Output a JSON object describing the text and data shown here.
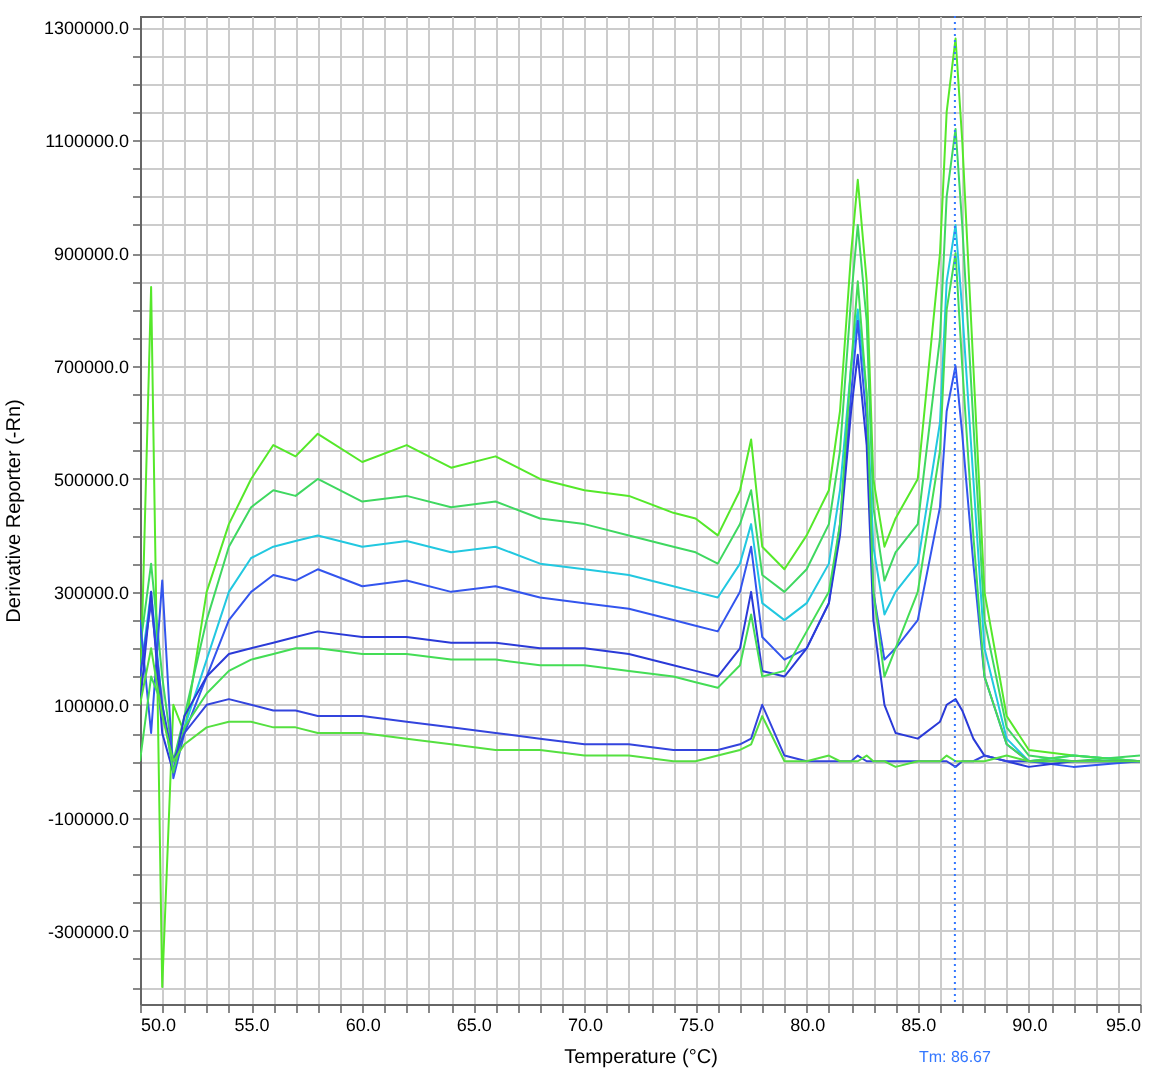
{
  "chart_data": {
    "type": "line",
    "xlabel": "Temperature (°C)",
    "ylabel": "Derivative Reporter (-Rn)",
    "xlim": [
      50,
      95
    ],
    "ylim": [
      -430000,
      1320000
    ],
    "grid": true,
    "xticks": [
      {
        "value": 50,
        "label": "50.0"
      },
      {
        "value": 51,
        "label": null
      },
      {
        "value": 52,
        "label": null
      },
      {
        "value": 53,
        "label": null
      },
      {
        "value": 54,
        "label": null
      },
      {
        "value": 55,
        "label": "55.0"
      },
      {
        "value": 56,
        "label": null
      },
      {
        "value": 57,
        "label": null
      },
      {
        "value": 58,
        "label": null
      },
      {
        "value": 59,
        "label": null
      },
      {
        "value": 60,
        "label": "60.0"
      },
      {
        "value": 61,
        "label": null
      },
      {
        "value": 62,
        "label": null
      },
      {
        "value": 63,
        "label": null
      },
      {
        "value": 64,
        "label": null
      },
      {
        "value": 65,
        "label": "65.0"
      },
      {
        "value": 66,
        "label": null
      },
      {
        "value": 67,
        "label": null
      },
      {
        "value": 68,
        "label": null
      },
      {
        "value": 69,
        "label": null
      },
      {
        "value": 70,
        "label": "70.0"
      },
      {
        "value": 71,
        "label": null
      },
      {
        "value": 72,
        "label": null
      },
      {
        "value": 73,
        "label": null
      },
      {
        "value": 74,
        "label": null
      },
      {
        "value": 75,
        "label": "75.0"
      },
      {
        "value": 76,
        "label": null
      },
      {
        "value": 77,
        "label": null
      },
      {
        "value": 78,
        "label": null
      },
      {
        "value": 79,
        "label": null
      },
      {
        "value": 80,
        "label": "80.0"
      },
      {
        "value": 81,
        "label": null
      },
      {
        "value": 82,
        "label": null
      },
      {
        "value": 83,
        "label": null
      },
      {
        "value": 84,
        "label": null
      },
      {
        "value": 85,
        "label": "85.0"
      },
      {
        "value": 86,
        "label": null
      },
      {
        "value": 87,
        "label": null
      },
      {
        "value": 88,
        "label": null
      },
      {
        "value": 89,
        "label": null
      },
      {
        "value": 90,
        "label": "90.0"
      },
      {
        "value": 91,
        "label": null
      },
      {
        "value": 92,
        "label": null
      },
      {
        "value": 93,
        "label": null
      },
      {
        "value": 94,
        "label": null
      },
      {
        "value": 95,
        "label": "95.0"
      }
    ],
    "yticks": [
      {
        "value": -400000,
        "label": null
      },
      {
        "value": -350000,
        "label": null
      },
      {
        "value": -300000,
        "label": "-300000.0"
      },
      {
        "value": -250000,
        "label": null
      },
      {
        "value": -200000,
        "label": null
      },
      {
        "value": -150000,
        "label": null
      },
      {
        "value": -100000,
        "label": "-100000.0"
      },
      {
        "value": -50000,
        "label": null
      },
      {
        "value": 0,
        "label": null
      },
      {
        "value": 50000,
        "label": null
      },
      {
        "value": 100000,
        "label": "100000.0"
      },
      {
        "value": 150000,
        "label": null
      },
      {
        "value": 200000,
        "label": null
      },
      {
        "value": 250000,
        "label": null
      },
      {
        "value": 300000,
        "label": "300000.0"
      },
      {
        "value": 350000,
        "label": null
      },
      {
        "value": 400000,
        "label": null
      },
      {
        "value": 450000,
        "label": null
      },
      {
        "value": 500000,
        "label": "500000.0"
      },
      {
        "value": 550000,
        "label": null
      },
      {
        "value": 600000,
        "label": null
      },
      {
        "value": 650000,
        "label": null
      },
      {
        "value": 700000,
        "label": "700000.0"
      },
      {
        "value": 750000,
        "label": null
      },
      {
        "value": 800000,
        "label": null
      },
      {
        "value": 850000,
        "label": null
      },
      {
        "value": 900000,
        "label": "900000.0"
      },
      {
        "value": 950000,
        "label": null
      },
      {
        "value": 1000000,
        "label": null
      },
      {
        "value": 1050000,
        "label": null
      },
      {
        "value": 1100000,
        "label": "1100000.0"
      },
      {
        "value": 1150000,
        "label": null
      },
      {
        "value": 1200000,
        "label": null
      },
      {
        "value": 1250000,
        "label": null
      },
      {
        "value": 1300000,
        "label": "1300000.0"
      }
    ],
    "ref_lines": [
      {
        "axis": "x",
        "value": 86.67,
        "label": "Tm: 86.67",
        "color": "#3377ff",
        "line_style": "dotted"
      }
    ],
    "x": [
      50,
      50.5,
      51,
      51.5,
      52,
      53,
      54,
      55,
      56,
      57,
      58,
      60,
      62,
      64,
      66,
      68,
      70,
      72,
      74,
      75,
      76,
      77,
      77.5,
      78,
      79,
      80,
      81,
      81.5,
      82,
      82.3,
      82.7,
      83,
      83.5,
      84,
      85,
      86,
      86.3,
      86.7,
      87,
      87.5,
      88,
      89,
      90,
      92,
      95
    ],
    "series": [
      {
        "color": "#55e82a",
        "values": [
          100000,
          840000,
          -400000,
          100000,
          50000,
          300000,
          420000,
          500000,
          560000,
          540000,
          580000,
          530000,
          560000,
          520000,
          540000,
          500000,
          480000,
          470000,
          440000,
          430000,
          400000,
          480000,
          570000,
          380000,
          340000,
          400000,
          480000,
          620000,
          900000,
          1030000,
          850000,
          500000,
          380000,
          430000,
          500000,
          900000,
          1150000,
          1280000,
          1100000,
          700000,
          300000,
          80000,
          20000,
          10000,
          0
        ]
      },
      {
        "color": "#3fd860",
        "values": [
          200000,
          350000,
          150000,
          0,
          80000,
          250000,
          380000,
          450000,
          480000,
          470000,
          500000,
          460000,
          470000,
          450000,
          460000,
          430000,
          420000,
          400000,
          380000,
          370000,
          350000,
          420000,
          480000,
          330000,
          300000,
          340000,
          420000,
          550000,
          820000,
          950000,
          780000,
          450000,
          320000,
          370000,
          420000,
          750000,
          1000000,
          1120000,
          950000,
          600000,
          250000,
          60000,
          10000,
          0,
          10000
        ]
      },
      {
        "color": "#22c8e0",
        "values": [
          150000,
          300000,
          100000,
          -20000,
          60000,
          180000,
          300000,
          360000,
          380000,
          390000,
          400000,
          380000,
          390000,
          370000,
          380000,
          350000,
          340000,
          330000,
          310000,
          300000,
          290000,
          350000,
          420000,
          280000,
          250000,
          280000,
          350000,
          480000,
          700000,
          800000,
          650000,
          380000,
          260000,
          300000,
          350000,
          600000,
          850000,
          950000,
          800000,
          500000,
          200000,
          40000,
          0,
          10000,
          0
        ]
      },
      {
        "color": "#3355ee",
        "values": [
          250000,
          50000,
          320000,
          -30000,
          50000,
          150000,
          250000,
          300000,
          330000,
          320000,
          340000,
          310000,
          320000,
          300000,
          310000,
          290000,
          280000,
          270000,
          250000,
          240000,
          230000,
          300000,
          380000,
          220000,
          180000,
          200000,
          280000,
          420000,
          650000,
          780000,
          600000,
          300000,
          180000,
          200000,
          250000,
          450000,
          620000,
          700000,
          580000,
          350000,
          150000,
          30000,
          0,
          -10000,
          0
        ]
      },
      {
        "color": "#2a3ad8",
        "values": [
          100000,
          300000,
          50000,
          -20000,
          80000,
          150000,
          190000,
          200000,
          210000,
          220000,
          230000,
          220000,
          220000,
          210000,
          210000,
          200000,
          200000,
          190000,
          170000,
          160000,
          150000,
          200000,
          300000,
          160000,
          150000,
          200000,
          280000,
          400000,
          620000,
          720000,
          560000,
          250000,
          100000,
          50000,
          40000,
          70000,
          100000,
          110000,
          90000,
          40000,
          10000,
          0,
          -10000,
          0,
          0
        ]
      },
      {
        "color": "#44dd55",
        "values": [
          0,
          150000,
          100000,
          -20000,
          60000,
          120000,
          160000,
          180000,
          190000,
          200000,
          200000,
          190000,
          190000,
          180000,
          180000,
          170000,
          170000,
          160000,
          150000,
          140000,
          130000,
          170000,
          260000,
          150000,
          160000,
          230000,
          300000,
          420000,
          700000,
          850000,
          650000,
          300000,
          150000,
          200000,
          300000,
          550000,
          800000,
          900000,
          700000,
          400000,
          150000,
          30000,
          0,
          10000,
          0
        ]
      },
      {
        "color": "#3344dd",
        "values": [
          150000,
          280000,
          100000,
          0,
          50000,
          100000,
          110000,
          100000,
          90000,
          90000,
          80000,
          80000,
          70000,
          60000,
          50000,
          40000,
          30000,
          30000,
          20000,
          20000,
          20000,
          30000,
          40000,
          100000,
          10000,
          0,
          0,
          0,
          0,
          10000,
          0,
          0,
          0,
          0,
          0,
          0,
          0,
          -10000,
          0,
          0,
          10000,
          0,
          0,
          0,
          0
        ]
      },
      {
        "color": "#55e040",
        "values": [
          100000,
          200000,
          80000,
          0,
          30000,
          60000,
          70000,
          70000,
          60000,
          60000,
          50000,
          50000,
          40000,
          30000,
          20000,
          20000,
          10000,
          10000,
          0,
          0,
          10000,
          20000,
          30000,
          80000,
          0,
          0,
          10000,
          0,
          0,
          0,
          10000,
          0,
          0,
          -10000,
          0,
          0,
          10000,
          0,
          0,
          0,
          0,
          10000,
          0,
          0,
          0
        ]
      }
    ]
  }
}
